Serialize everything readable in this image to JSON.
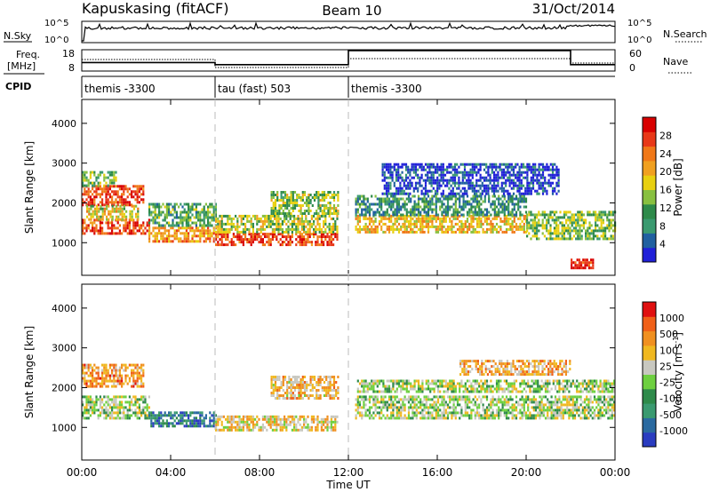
{
  "header": {
    "title": "Kapuskasing (fitACF)",
    "beam": "Beam 10",
    "date": "31/Oct/2014"
  },
  "noise_panel": {
    "left_label": "N.Sky",
    "right_label": "N.Search",
    "left_ticks": [
      "10^5",
      "10^0"
    ],
    "right_ticks": [
      "10^5",
      "10^0"
    ]
  },
  "freq_panel": {
    "left_label_1": "Freq.",
    "left_label_2": "[MHz]",
    "right_label": "Nave",
    "left_ticks": [
      "18",
      "8"
    ],
    "right_ticks": [
      "60",
      "0"
    ]
  },
  "cpid_panel": {
    "label": "CPID",
    "segments": [
      {
        "label": "themis -3300",
        "start": 0,
        "end": 6
      },
      {
        "label": "tau (fast) 503",
        "start": 6,
        "end": 12
      },
      {
        "label": "themis -3300",
        "start": 12,
        "end": 24
      }
    ]
  },
  "chart_data": [
    {
      "type": "heatmap",
      "name": "power",
      "ylabel": "Slant Range [km]",
      "ylim": [
        180,
        4600
      ],
      "y_ticks": [
        1000,
        2000,
        3000,
        4000
      ],
      "colorbar_label": "Power [dB]",
      "colorbar_ticks": [
        "28",
        "24",
        "20",
        "16",
        "12",
        "8",
        "4"
      ],
      "colorbar_colors": [
        "#2020d8",
        "#2060a0",
        "#3a9a70",
        "#2e8a4a",
        "#88c040",
        "#e8d010",
        "#f0a020",
        "#f07818",
        "#e83818",
        "#d80000"
      ],
      "regions": [
        {
          "t0": 0.0,
          "t1": 2.8,
          "r0": 1950,
          "r1": 2450,
          "level": 0.86
        },
        {
          "t0": 0.0,
          "t1": 3.0,
          "r0": 1200,
          "r1": 1600,
          "level": 0.84
        },
        {
          "t0": 0.2,
          "t1": 2.5,
          "r0": 1600,
          "r1": 1950,
          "level": 0.55
        },
        {
          "t0": 0.0,
          "t1": 1.5,
          "r0": 2450,
          "r1": 2800,
          "level": 0.4
        },
        {
          "t0": 3.0,
          "t1": 6.0,
          "r0": 1000,
          "r1": 1400,
          "level": 0.7
        },
        {
          "t0": 3.0,
          "t1": 6.0,
          "r0": 1400,
          "r1": 2000,
          "level": 0.35
        },
        {
          "t0": 6.0,
          "t1": 11.5,
          "r0": 950,
          "r1": 1250,
          "level": 0.84
        },
        {
          "t0": 6.0,
          "t1": 11.5,
          "r0": 1250,
          "r1": 1700,
          "level": 0.5
        },
        {
          "t0": 8.5,
          "t1": 11.5,
          "r0": 1700,
          "r1": 2300,
          "level": 0.45
        },
        {
          "t0": 12.3,
          "t1": 20.0,
          "r0": 1250,
          "r1": 1700,
          "level": 0.62
        },
        {
          "t0": 12.3,
          "t1": 20.0,
          "r0": 1700,
          "r1": 2200,
          "level": 0.28
        },
        {
          "t0": 20.0,
          "t1": 24.0,
          "r0": 1100,
          "r1": 1800,
          "level": 0.42
        },
        {
          "t0": 13.5,
          "t1": 21.5,
          "r0": 2200,
          "r1": 3000,
          "level": 0.08
        },
        {
          "t0": 22.0,
          "t1": 23.0,
          "r0": 380,
          "r1": 600,
          "level": 0.95
        }
      ]
    },
    {
      "type": "heatmap",
      "name": "velocity",
      "xlabel": "Time UT",
      "ylabel": "Slant Range [km]",
      "xlim": [
        0,
        24
      ],
      "x_ticks": [
        "00:00",
        "04:00",
        "08:00",
        "12:00",
        "16:00",
        "20:00",
        "00:00"
      ],
      "ylim": [
        180,
        4600
      ],
      "y_ticks": [
        1000,
        2000,
        3000,
        4000
      ],
      "colorbar_label": "Velocity [m s^-1]",
      "colorbar_ticks": [
        "1000",
        "500",
        "100",
        "25",
        "-25",
        "-100",
        "-500",
        "-1000"
      ],
      "colorbar_colors": [
        "#2a3cc0",
        "#2a6aa0",
        "#3a9a70",
        "#2e8a4a",
        "#6ed040",
        "#c8c8c0",
        "#f0b820",
        "#f09020",
        "#f06018",
        "#e01010"
      ],
      "regions": [
        {
          "t0": 0.0,
          "t1": 3.0,
          "r0": 1200,
          "r1": 1800,
          "level": 0.5
        },
        {
          "t0": 0.0,
          "t1": 2.8,
          "r0": 2000,
          "r1": 2600,
          "level": 0.75
        },
        {
          "t0": 3.0,
          "t1": 6.0,
          "r0": 1000,
          "r1": 1400,
          "level": 0.2
        },
        {
          "t0": 6.0,
          "t1": 11.5,
          "r0": 950,
          "r1": 1300,
          "level": 0.62
        },
        {
          "t0": 8.5,
          "t1": 11.5,
          "r0": 1700,
          "r1": 2300,
          "level": 0.66
        },
        {
          "t0": 12.3,
          "t1": 24.0,
          "r0": 1250,
          "r1": 1800,
          "level": 0.5
        },
        {
          "t0": 12.3,
          "t1": 24.0,
          "r0": 1900,
          "r1": 2200,
          "level": 0.5
        },
        {
          "t0": 17.0,
          "t1": 22.0,
          "r0": 2300,
          "r1": 2700,
          "level": 0.7
        }
      ]
    }
  ]
}
